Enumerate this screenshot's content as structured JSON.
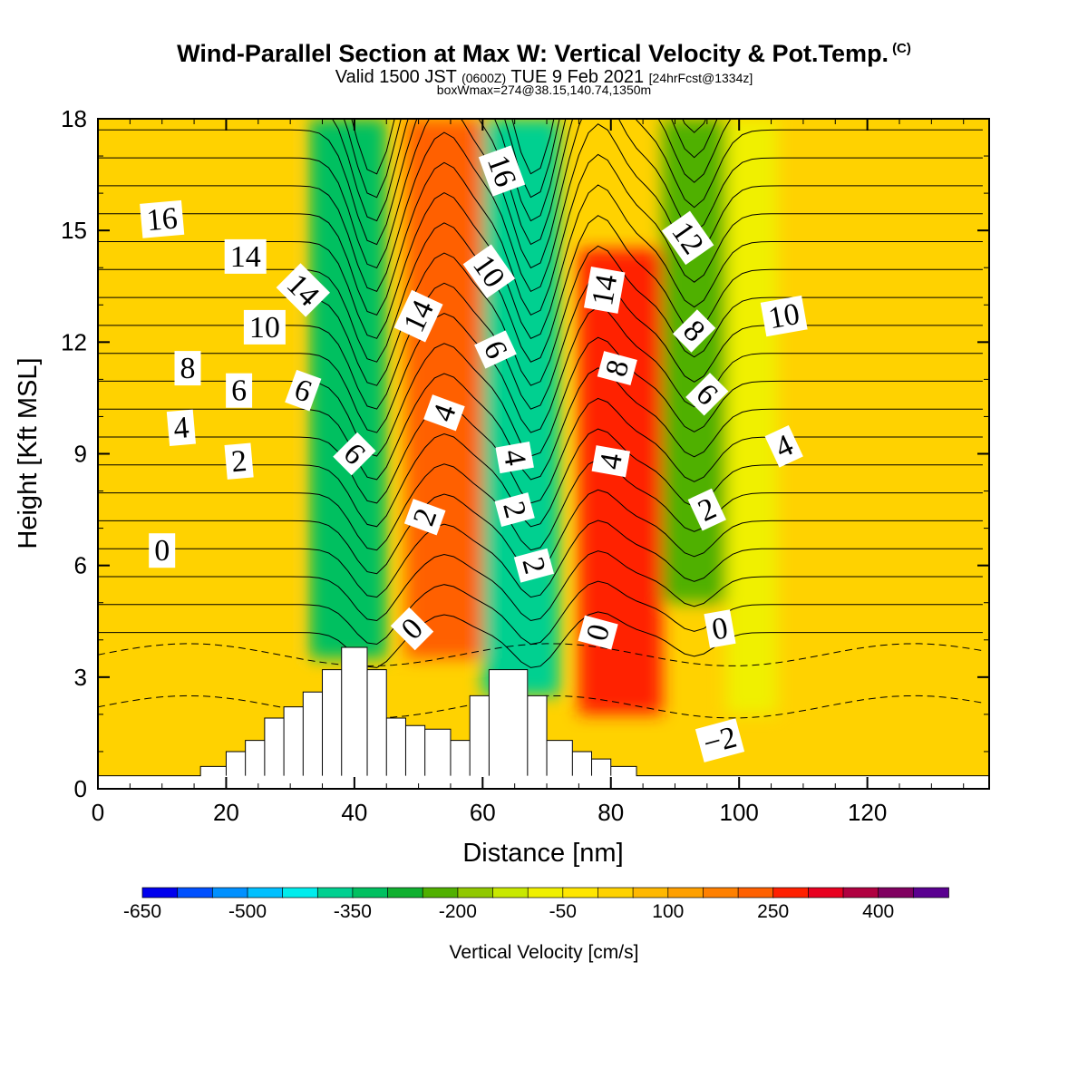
{
  "title": {
    "main": "Wind-Parallel Section at Max W: Vertical Velocity & Pot.Temp.",
    "copyright": "(C)",
    "valid_prefix": "Valid 1500 JST",
    "valid_utc": "(0600Z)",
    "valid_date": "TUE 9 Feb 2021",
    "forecast": "[24hrFcst@1334z]",
    "box_info": "boxWmax=274@38.15,140.74,1350m"
  },
  "chart_data": {
    "type": "heatmap",
    "xlabel": "Distance [nm]",
    "ylabel": "Height [Kft MSL]",
    "xlim": [
      0,
      139
    ],
    "ylim": [
      0,
      18
    ],
    "x_ticks": [
      "0",
      "20",
      "40",
      "60",
      "80",
      "100",
      "120"
    ],
    "y_ticks": [
      "0",
      "3",
      "6",
      "9",
      "12",
      "15",
      "18"
    ],
    "grid": false,
    "colorbar": {
      "label": "Vertical Velocity [cm/s]",
      "tick_labels": [
        "-650",
        "-500",
        "-350",
        "-200",
        "-50",
        "100",
        "250",
        "400"
      ],
      "levels": [
        -650,
        -600,
        -550,
        -500,
        -450,
        -400,
        -350,
        -300,
        -250,
        -200,
        -150,
        -100,
        -50,
        0,
        50,
        100,
        150,
        200,
        250,
        300,
        350,
        400,
        450
      ],
      "colors": [
        "#0000ee",
        "#0050ff",
        "#0090ff",
        "#00c0ff",
        "#00ecec",
        "#00d090",
        "#00c060",
        "#10b030",
        "#50b000",
        "#90c800",
        "#c8e800",
        "#f0f000",
        "#ffe600",
        "#ffd200",
        "#ffb800",
        "#ffa000",
        "#ff8000",
        "#ff6000",
        "#ff2000",
        "#e80020",
        "#b00040",
        "#800060",
        "#5a0090"
      ]
    },
    "vertical_velocity_cells": [
      {
        "x": [
          33,
          45
        ],
        "y": [
          3.5,
          18
        ],
        "w": -350
      },
      {
        "x": [
          48,
          60
        ],
        "y": [
          3.5,
          18
        ],
        "w": 200
      },
      {
        "x": [
          60,
          72
        ],
        "y": [
          2.5,
          18
        ],
        "w": -400
      },
      {
        "x": [
          75,
          88
        ],
        "y": [
          2.0,
          14.5
        ],
        "w": 274
      },
      {
        "x": [
          88,
          98
        ],
        "y": [
          5.0,
          18
        ],
        "w": -250
      },
      {
        "x": [
          98,
          106
        ],
        "y": [
          2.0,
          18
        ],
        "w": -60
      },
      {
        "x": [
          0,
          30
        ],
        "y": [
          0,
          18
        ],
        "w": 20
      }
    ],
    "terrain_kft": [
      {
        "x": [
          16,
          20
        ],
        "h": 0.6
      },
      {
        "x": [
          20,
          23
        ],
        "h": 1.0
      },
      {
        "x": [
          23,
          26
        ],
        "h": 1.3
      },
      {
        "x": [
          26,
          29
        ],
        "h": 1.9
      },
      {
        "x": [
          29,
          32
        ],
        "h": 2.2
      },
      {
        "x": [
          32,
          35
        ],
        "h": 2.6
      },
      {
        "x": [
          35,
          38
        ],
        "h": 3.2
      },
      {
        "x": [
          38,
          42
        ],
        "h": 3.8
      },
      {
        "x": [
          42,
          45
        ],
        "h": 3.2
      },
      {
        "x": [
          45,
          48
        ],
        "h": 1.9
      },
      {
        "x": [
          48,
          51
        ],
        "h": 1.7
      },
      {
        "x": [
          51,
          55
        ],
        "h": 1.6
      },
      {
        "x": [
          55,
          58
        ],
        "h": 1.3
      },
      {
        "x": [
          58,
          61
        ],
        "h": 2.5
      },
      {
        "x": [
          61,
          67
        ],
        "h": 3.2
      },
      {
        "x": [
          67,
          70
        ],
        "h": 2.5
      },
      {
        "x": [
          70,
          74
        ],
        "h": 1.3
      },
      {
        "x": [
          74,
          77
        ],
        "h": 1.0
      },
      {
        "x": [
          77,
          80
        ],
        "h": 0.8
      },
      {
        "x": [
          80,
          84
        ],
        "h": 0.6
      }
    ],
    "theta_contour_labels": [
      {
        "x": 10,
        "y": 15.3,
        "text": "16",
        "rot": -5
      },
      {
        "x": 23,
        "y": 14.3,
        "text": "14",
        "rot": 0
      },
      {
        "x": 26,
        "y": 12.4,
        "text": "10",
        "rot": 0
      },
      {
        "x": 14,
        "y": 11.3,
        "text": "8",
        "rot": 0
      },
      {
        "x": 22,
        "y": 10.7,
        "text": "6",
        "rot": 0
      },
      {
        "x": 13,
        "y": 9.7,
        "text": "4",
        "rot": -5
      },
      {
        "x": 22,
        "y": 8.8,
        "text": "2",
        "rot": -5
      },
      {
        "x": 10,
        "y": 6.4,
        "text": "0",
        "rot": 0
      },
      {
        "x": 32,
        "y": 13.4,
        "text": "14",
        "rot": 45
      },
      {
        "x": 32,
        "y": 10.7,
        "text": "6",
        "rot": 20
      },
      {
        "x": 40,
        "y": 9.0,
        "text": "6",
        "rot": 45
      },
      {
        "x": 50,
        "y": 12.7,
        "text": "14",
        "rot": -65
      },
      {
        "x": 54,
        "y": 10.1,
        "text": "4",
        "rot": -70
      },
      {
        "x": 51,
        "y": 7.3,
        "text": "2",
        "rot": -70
      },
      {
        "x": 49,
        "y": 4.3,
        "text": "0",
        "rot": -45
      },
      {
        "x": 63,
        "y": 16.6,
        "text": "16",
        "rot": 70
      },
      {
        "x": 61,
        "y": 13.9,
        "text": "10",
        "rot": 55
      },
      {
        "x": 62,
        "y": 11.8,
        "text": "6",
        "rot": 65
      },
      {
        "x": 65,
        "y": 8.9,
        "text": "4",
        "rot": 80
      },
      {
        "x": 65,
        "y": 7.5,
        "text": "2",
        "rot": 75
      },
      {
        "x": 68,
        "y": 6.0,
        "text": "2",
        "rot": 75
      },
      {
        "x": 79,
        "y": 13.4,
        "text": "14",
        "rot": -80
      },
      {
        "x": 81,
        "y": 11.3,
        "text": "8",
        "rot": -75
      },
      {
        "x": 80,
        "y": 8.8,
        "text": "4",
        "rot": -80
      },
      {
        "x": 78,
        "y": 4.2,
        "text": "0",
        "rot": -75
      },
      {
        "x": 92,
        "y": 14.8,
        "text": "12",
        "rot": 55
      },
      {
        "x": 93,
        "y": 12.3,
        "text": "8",
        "rot": 45
      },
      {
        "x": 95,
        "y": 10.6,
        "text": "6",
        "rot": 45
      },
      {
        "x": 95,
        "y": 7.5,
        "text": "2",
        "rot": -25
      },
      {
        "x": 97,
        "y": 4.3,
        "text": "0",
        "rot": -10
      },
      {
        "x": 107,
        "y": 12.7,
        "text": "10",
        "rot": -10
      },
      {
        "x": 107,
        "y": 9.2,
        "text": "4",
        "rot": -25
      },
      {
        "x": 97,
        "y": 1.3,
        "text": "−2",
        "rot": -15
      }
    ]
  }
}
